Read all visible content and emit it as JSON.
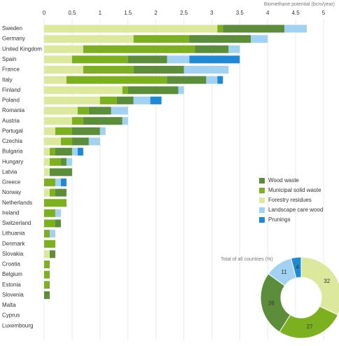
{
  "chart_data": [
    {
      "type": "stacked-bar-horizontal",
      "xlabel": "Biomethane potential (bcm/year)",
      "categories": [
        "Sweden",
        "Germany",
        "United Kingdom",
        "Spain",
        "France",
        "Italy",
        "Finland",
        "Poland",
        "Romania",
        "Austria",
        "Portugal",
        "Czechia",
        "Bulgaria",
        "Hungary",
        "Latvia",
        "Greece",
        "Norway",
        "Netherlands",
        "Ireland",
        "Switzerland",
        "Lithuania",
        "Denmark",
        "Slovakia",
        "Croatia",
        "Belgium",
        "Estonia",
        "Slovenia",
        "Malta",
        "Cyprus",
        "Luxembourg"
      ],
      "series": [
        {
          "name": "Forestry residues",
          "color": "#dce89b",
          "values": [
            3.1,
            1.6,
            0.7,
            0.5,
            0.7,
            0.4,
            1.4,
            1.0,
            0.6,
            0.5,
            0.2,
            0.3,
            0.1,
            0.1,
            0.1,
            0,
            0.1,
            0,
            0,
            0,
            0,
            0,
            0.1,
            0,
            0,
            0,
            0,
            0,
            0,
            0
          ]
        },
        {
          "name": "Municipal solid waste",
          "color": "#7cb01f",
          "values": [
            0.1,
            1.0,
            2.0,
            1.0,
            0.9,
            1.8,
            0.1,
            0.3,
            0.2,
            0.2,
            0.3,
            0.2,
            0.1,
            0.2,
            0,
            0.2,
            0.1,
            0.4,
            0.2,
            0.2,
            0.1,
            0.2,
            0,
            0.1,
            0.1,
            0.1,
            0,
            0,
            0,
            0
          ]
        },
        {
          "name": "Wood waste",
          "color": "#5c8d3b",
          "values": [
            1.1,
            1.1,
            0.6,
            0.7,
            0.9,
            0.7,
            0.9,
            0.3,
            0.4,
            0.7,
            0.5,
            0.3,
            0.3,
            0.1,
            0.4,
            0,
            0.2,
            0,
            0,
            0.1,
            0,
            0,
            0.1,
            0,
            0,
            0,
            0.1,
            0,
            0,
            0
          ]
        },
        {
          "name": "Landscape care wood",
          "color": "#a2d2f2",
          "values": [
            0.4,
            0.3,
            0.2,
            0.4,
            0.8,
            0.2,
            0.1,
            0.3,
            0.3,
            0.1,
            0.1,
            0.2,
            0.1,
            0.1,
            0,
            0.1,
            0,
            0,
            0.1,
            0,
            0.1,
            0,
            0,
            0,
            0,
            0,
            0,
            0,
            0,
            0
          ]
        },
        {
          "name": "Prunings",
          "color": "#1f89d5",
          "values": [
            0,
            0,
            0,
            0.9,
            0,
            0.1,
            0,
            0.2,
            0,
            0,
            0,
            0,
            0.1,
            0,
            0,
            0.1,
            0,
            0,
            0,
            0,
            0,
            0,
            0,
            0,
            0,
            0,
            0,
            0,
            0,
            0
          ]
        }
      ],
      "xlim": [
        0,
        5
      ],
      "xticks": [
        0,
        0.5,
        1,
        1.5,
        2,
        2.5,
        3,
        3.5,
        4,
        4.5,
        5
      ],
      "grid": true
    },
    {
      "type": "donut",
      "title": "Total of all countries (%)",
      "values": [
        32,
        27,
        26,
        11,
        4
      ],
      "colors": [
        "#dce89b",
        "#7cb01f",
        "#5c8d3b",
        "#a2d2f2",
        "#1f89d5"
      ]
    }
  ]
}
